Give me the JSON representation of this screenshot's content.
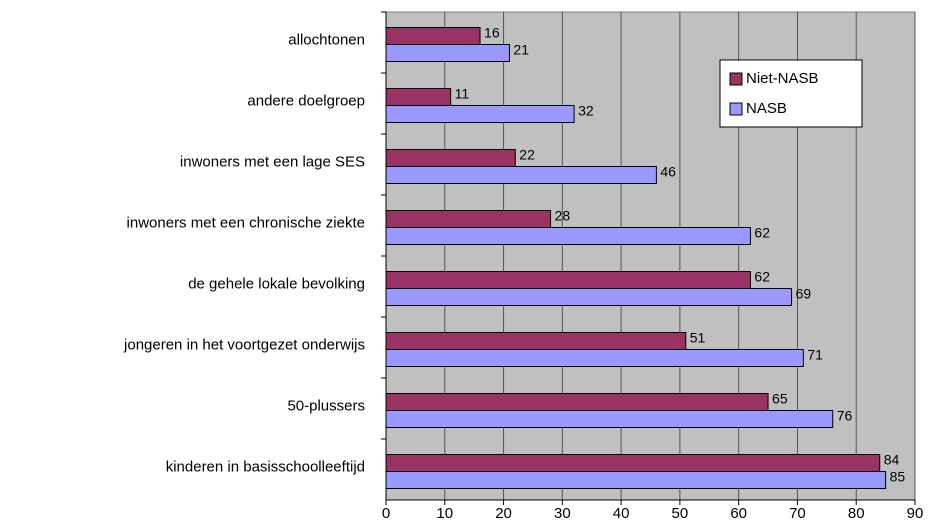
{
  "chart_data": {
    "type": "bar",
    "orientation": "horizontal",
    "categories": [
      "allochtonen",
      "andere doelgroep",
      "inwoners met een lage SES",
      "inwoners met een chronische ziekte",
      "de gehele lokale bevolking",
      "jongeren in het voortgezet onderwijs",
      "50-plussers",
      "kinderen in basisschoolleeftijd"
    ],
    "series": [
      {
        "name": "Niet-NASB",
        "color": "#993366",
        "values": [
          16,
          11,
          22,
          28,
          62,
          51,
          65,
          84
        ]
      },
      {
        "name": "NASB",
        "color": "#9999ff",
        "values": [
          21,
          32,
          46,
          62,
          69,
          71,
          76,
          85
        ]
      }
    ],
    "xlim": [
      0,
      90
    ],
    "xticks": [
      0,
      10,
      20,
      30,
      40,
      50,
      60,
      70,
      80,
      90
    ],
    "grid": true,
    "legend": "upper right"
  }
}
